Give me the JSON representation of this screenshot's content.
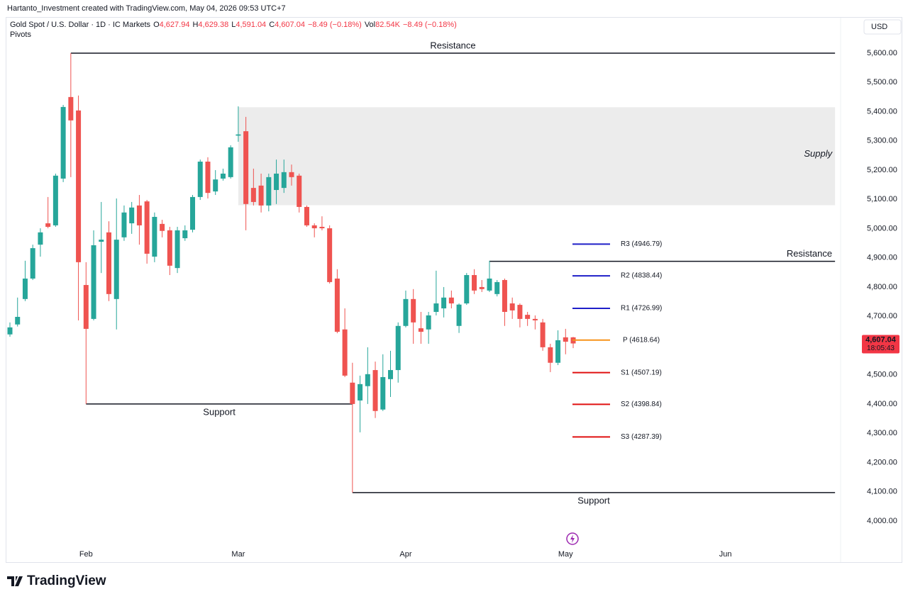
{
  "header": {
    "attribution": "Hartanto_Investment created with TradingView.com, May 04, 2026 09:53 UTC+7",
    "branding": "TradingView"
  },
  "chart_data": {
    "type": "candlestick",
    "symbol": "Gold Spot / U.S. Dollar · 1D · IC Markets",
    "ohlc": [
      {
        "key": "O",
        "text": "4,627.94"
      },
      {
        "key": "H",
        "text": "4,629.38"
      },
      {
        "key": "L",
        "text": "4,591.04"
      },
      {
        "key": "C",
        "text": "4,607.04"
      }
    ],
    "change": "−8.49 (−0.18%)",
    "volume": {
      "key": "Vol",
      "text": "82.54K",
      "change": "−8.49 (−0.18%)"
    },
    "indicator": "Pivots",
    "currency": "USD",
    "up_color": "#26a69a",
    "down_color": "#ef5350",
    "categories": [
      null,
      null,
      null,
      null,
      null,
      null,
      null,
      null,
      null,
      null,
      "Feb",
      null,
      null,
      null,
      null,
      null,
      null,
      null,
      null,
      null,
      null,
      null,
      null,
      null,
      null,
      null,
      null,
      null,
      null,
      null,
      "Mar",
      null,
      null,
      null,
      null,
      null,
      null,
      null,
      null,
      null,
      null,
      null,
      null,
      null,
      null,
      null,
      null,
      null,
      null,
      null,
      null,
      null,
      "Apr",
      null,
      null,
      null,
      null,
      null,
      null,
      null,
      null,
      null,
      null,
      null,
      null,
      null,
      null,
      null,
      null,
      null,
      null,
      null,
      null,
      "May",
      null,
      null,
      null,
      null,
      null,
      null,
      null,
      null,
      null,
      null,
      null,
      null,
      null,
      null,
      null,
      null,
      null,
      null,
      null,
      null,
      "Jun",
      null,
      null,
      null,
      null,
      null,
      null,
      null,
      null,
      null,
      null,
      null,
      null,
      null,
      null,
      null
    ],
    "open": [
      4638,
      4672,
      4759,
      4829,
      4945,
      5018,
      5011,
      5171,
      5450,
      5404,
      4807,
      4691,
      4955,
      4987,
      4759,
      4970,
      5018,
      5079,
      5093,
      4904,
      5016,
      4994,
      4865,
      4967,
      4996,
      5108,
      5229,
      5127,
      5171,
      5176,
      5318,
      5333,
      5139,
      5147,
      5079,
      5132,
      5139,
      5193,
      5181,
      5074,
      5011,
      5006,
      5001,
      4829,
      4655,
      4473,
      4412,
      4461,
      4516,
      4381,
      4485,
      4516,
      4667,
      4759,
      4659,
      4655,
      4715,
      4727,
      4764,
      4667,
      4744,
      4841,
      4800,
      4788,
      4776,
      4824,
      4744,
      4739,
      4705,
      4691,
      4679,
      4594,
      4541,
      4628,
      4627.94,
      null,
      null,
      null,
      null,
      null,
      null,
      null,
      null,
      null,
      null,
      null,
      null,
      null,
      null,
      null,
      null,
      null,
      null,
      null,
      null,
      null,
      null,
      null,
      null,
      null,
      null,
      null,
      null,
      null,
      null,
      null,
      null,
      null,
      null,
      null
    ],
    "high": [
      4679,
      4764,
      4890,
      4945,
      5001,
      5108,
      5188,
      5423,
      5600,
      5455,
      4885,
      4994,
      5091,
      5025,
      5103,
      5079,
      5091,
      5115,
      5098,
      5055,
      5030,
      5006,
      5006,
      5011,
      5115,
      5236,
      5244,
      5200,
      5205,
      5285,
      5418,
      5382,
      5205,
      5188,
      5188,
      5236,
      5236,
      5219,
      5188,
      5079,
      5018,
      5042,
      5011,
      4861,
      4727,
      4541,
      4497,
      4594,
      4545,
      4570,
      4582,
      4679,
      4788,
      4793,
      4715,
      4715,
      4856,
      4800,
      4788,
      4744,
      4848,
      4861,
      4824,
      4890,
      4824,
      4829,
      4764,
      4744,
      4715,
      4703,
      4691,
      4606,
      4652,
      4657,
      4629.38,
      null,
      null,
      null,
      null,
      null,
      null,
      null,
      null,
      null,
      null,
      null,
      null,
      null,
      null,
      null,
      null,
      null,
      null,
      null,
      null,
      null,
      null,
      null,
      null,
      null,
      null,
      null,
      null,
      null,
      null,
      null,
      null,
      null,
      null,
      null
    ],
    "low": [
      4630,
      4665,
      4752,
      4824,
      4904,
      5001,
      5006,
      5159,
      5176,
      4686,
      4400,
      4686,
      4848,
      4752,
      4655,
      4958,
      4982,
      4945,
      4880,
      4885,
      4970,
      4841,
      4848,
      4958,
      4987,
      5098,
      5103,
      5115,
      5164,
      5171,
      5297,
      4994,
      5079,
      5055,
      5059,
      5084,
      5122,
      5147,
      5055,
      5006,
      4970,
      4994,
      4812,
      4642,
      4492,
      4097,
      4303,
      4400,
      4352,
      4376,
      4424,
      4473,
      4662,
      4606,
      4606,
      4606,
      4703,
      4696,
      4727,
      4643,
      4739,
      4776,
      4783,
      4783,
      4768,
      4667,
      4691,
      4662,
      4667,
      4655,
      4582,
      4509,
      4533,
      4570,
      4591.04,
      null,
      null,
      null,
      null,
      null,
      null,
      null,
      null,
      null,
      null,
      null,
      null,
      null,
      null,
      null,
      null,
      null,
      null,
      null,
      null,
      null,
      null,
      null,
      null,
      null,
      null,
      null,
      null,
      null,
      null,
      null,
      null,
      null,
      null,
      null
    ],
    "close": [
      4662,
      4698,
      4829,
      4933,
      4987,
      5006,
      5181,
      5416,
      5370,
      4885,
      4657,
      4943,
      4962,
      4776,
      4962,
      5055,
      5072,
      5011,
      4914,
      5040,
      4992,
      4873,
      4994,
      4994,
      5108,
      5229,
      5122,
      5168,
      5188,
      5278,
      5322,
      5084,
      5091,
      5079,
      5176,
      5188,
      5193,
      5176,
      5074,
      5011,
      5001,
      5001,
      4817,
      4647,
      4497,
      4400,
      4468,
      4502,
      4376,
      4492,
      4516,
      4667,
      4759,
      4679,
      4647,
      4703,
      4744,
      4764,
      4744,
      4740,
      4841,
      4788,
      4793,
      4829,
      4817,
      4715,
      4720,
      4691,
      4691,
      4686,
      4594,
      4541,
      4618,
      4613,
      4607.04,
      null,
      null,
      null,
      null,
      null,
      null,
      null,
      null,
      null,
      null,
      null,
      null,
      null,
      null,
      null,
      null,
      null,
      null,
      null,
      null,
      null,
      null,
      null,
      null,
      null,
      null,
      null,
      null,
      null,
      null,
      null,
      null,
      null,
      null,
      null
    ],
    "ylim": [
      3859,
      5714
    ],
    "yticks": [
      {
        "value": 4000,
        "label": "4,000.00"
      },
      {
        "value": 4100,
        "label": "4,100.00"
      },
      {
        "value": 4200,
        "label": "4,200.00"
      },
      {
        "value": 4300,
        "label": "4,300.00"
      },
      {
        "value": 4400,
        "label": "4,400.00"
      },
      {
        "value": 4500,
        "label": "4,500.00"
      },
      {
        "value": 4600,
        "label": "4,600.00"
      },
      {
        "value": 4700,
        "label": "4,700.00"
      },
      {
        "value": 4800,
        "label": "4,800.00"
      },
      {
        "value": 4900,
        "label": "4,900.00"
      },
      {
        "value": 5000,
        "label": "5,000.00"
      },
      {
        "value": 5100,
        "label": "5,100.00"
      },
      {
        "value": 5200,
        "label": "5,200.00"
      },
      {
        "value": 5300,
        "label": "5,300.00"
      },
      {
        "value": 5400,
        "label": "5,400.00"
      },
      {
        "value": 5500,
        "label": "5,500.00"
      },
      {
        "value": 5600,
        "label": "5,600.00"
      }
    ],
    "grid": false,
    "last_price": {
      "value": 4607.04,
      "label": "4,607.04",
      "countdown": "18:05:43",
      "color": "#f23645"
    },
    "levels": [
      {
        "label": "Resistance",
        "value": 5600
      },
      {
        "label": "Resistance",
        "value": 4888
      },
      {
        "label": "Support",
        "value": 4400
      },
      {
        "label": "Support",
        "value": 4097
      }
    ],
    "zones": [
      {
        "label": "Supply",
        "low": 5080,
        "high": 5415
      }
    ],
    "pivots": [
      {
        "label": "R3 (4946.79)",
        "value": 4946.79,
        "color": "#1f1fc8"
      },
      {
        "label": "R2 (4838.44)",
        "value": 4838.44,
        "color": "#1f1fc8"
      },
      {
        "label": "R1 (4726.99)",
        "value": 4726.99,
        "color": "#1f1fc8"
      },
      {
        "label": "P (4618.64)",
        "value": 4618.64,
        "color": "#f7931a"
      },
      {
        "label": "S1 (4507.19)",
        "value": 4507.19,
        "color": "#e01010"
      },
      {
        "label": "S2 (4398.84)",
        "value": 4398.84,
        "color": "#e01010"
      },
      {
        "label": "S3 (4287.39)",
        "value": 4287.39,
        "color": "#e01010"
      }
    ]
  }
}
